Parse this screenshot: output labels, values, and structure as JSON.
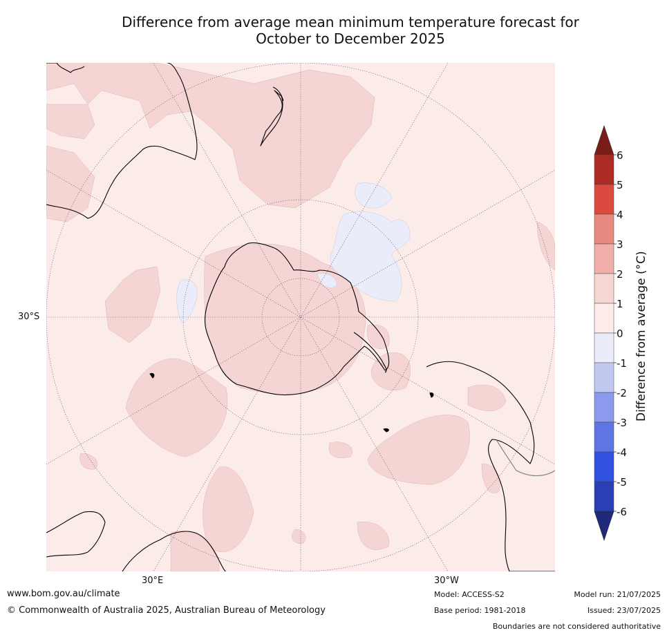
{
  "title": {
    "line1": "Difference from average mean minimum temperature forecast for",
    "line2": "October to December 2025"
  },
  "map": {
    "projection": "south-polar-stereographic",
    "lat_labels": [
      "30°S"
    ],
    "lon_labels": [
      "30°E",
      "30°W"
    ],
    "background_color": "#fbecea",
    "land_outline_color": "#000000"
  },
  "colorbar": {
    "title": "Difference from average (°C)",
    "ticks": [
      "6",
      "5",
      "4",
      "3",
      "2",
      "1",
      "0",
      "-1",
      "-2",
      "-3",
      "-4",
      "-5",
      "-6"
    ],
    "colors": [
      "#ad2a25",
      "#da4a3f",
      "#e98a80",
      "#f0b0a9",
      "#f6d6d3",
      "#fbecea",
      "#eaecf9",
      "#c2c9f0",
      "#8b9aec",
      "#5e75e4",
      "#3152e0",
      "#2a3fb3"
    ],
    "over_color": "#7a1d18",
    "under_color": "#1f2a7a"
  },
  "footer": {
    "website": "www.bom.gov.au/climate",
    "copyright": "© Commonwealth of Australia 2025, Australian Bureau of Meteorology",
    "model": "Model: ACCESS-S2",
    "base_period": "Base period: 1981-2018",
    "model_run": "Model run: 21/07/2025",
    "issued": "Issued: 23/07/2025",
    "boundaries": "Boundaries are not considered authoritative"
  }
}
